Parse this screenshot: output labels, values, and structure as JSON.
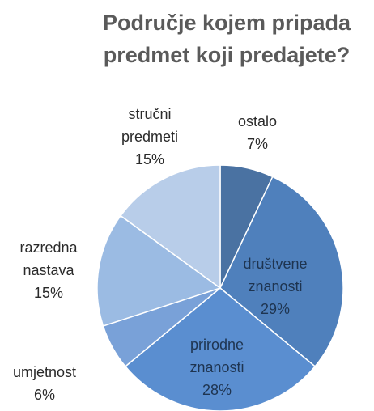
{
  "chart_data": {
    "type": "pie",
    "title": "Područje kojem pripada predmet koji predajete?",
    "categories": [
      "ostalo",
      "društvene znanosti",
      "prirodne znanosti",
      "umjetnost",
      "razredna nastava",
      "stručni predmeti"
    ],
    "values": [
      7,
      29,
      28,
      6,
      15,
      15
    ],
    "value_labels": [
      "7%",
      "29%",
      "28%",
      "6%",
      "15%",
      "15%"
    ],
    "colors": [
      "#4a72a2",
      "#4f80bc",
      "#5a8ed0",
      "#79a1d8",
      "#9bbbe3",
      "#b8cde9"
    ]
  }
}
